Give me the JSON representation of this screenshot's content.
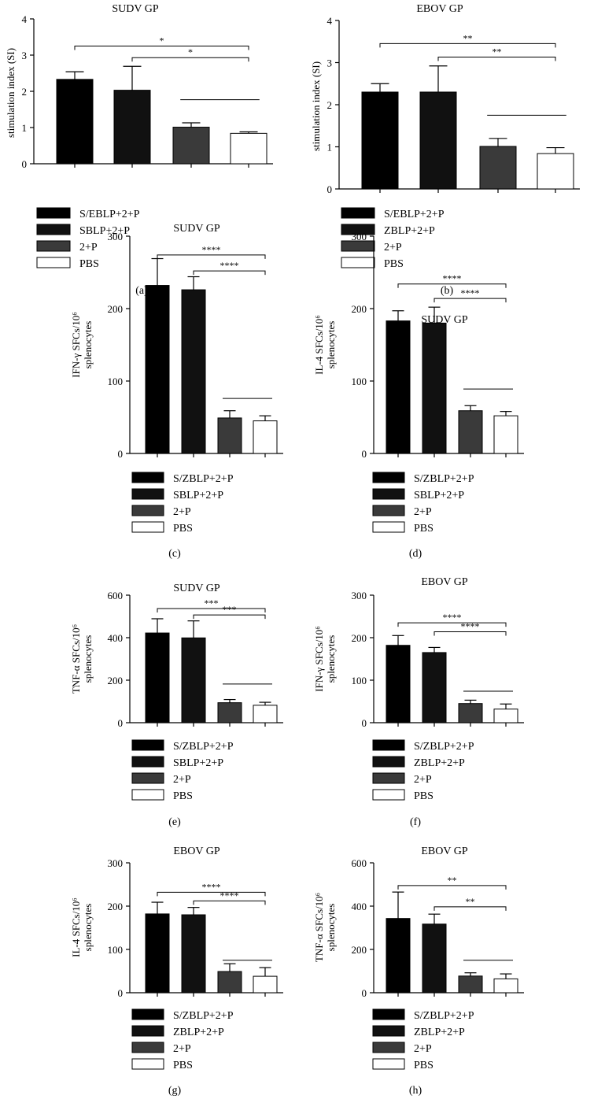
{
  "panels": [
    {
      "label": "(a)",
      "chart_data": {
        "type": "bar",
        "title": "SUDV GP",
        "ylabel_lines": [
          "stimulation index (SI)"
        ],
        "ylim": [
          0,
          4
        ],
        "yticks": [
          0,
          1,
          2,
          3,
          4
        ],
        "categories": [
          "S/EBLP+2+P",
          "SBLP+2+P",
          "2+P",
          "PBS"
        ],
        "values": [
          2.33,
          2.03,
          1.01,
          0.84
        ],
        "errors": [
          0.21,
          0.66,
          0.12,
          0.04
        ],
        "significance": [
          {
            "from": 0,
            "to": 3,
            "label": "*",
            "y": 3.25
          },
          {
            "from": 1,
            "to": 3,
            "label": "*",
            "y": 2.93
          },
          {
            "from": 2,
            "to": 3,
            "label": "",
            "y": 1.77
          }
        ],
        "legend": [
          "S/EBLP+2+P",
          "SBLP+2+P",
          "2+P",
          "PBS"
        ]
      }
    },
    {
      "label": "(b)",
      "chart_data": {
        "type": "bar",
        "title": "EBOV GP",
        "ylabel_lines": [
          "stimulation index (SI)"
        ],
        "ylim": [
          0,
          4
        ],
        "yticks": [
          0,
          1,
          2,
          3,
          4
        ],
        "categories": [
          "S/EBLP+2+P",
          "ZBLP+2+P",
          "2+P",
          "PBS"
        ],
        "values": [
          2.3,
          2.3,
          1.01,
          0.84
        ],
        "errors": [
          0.2,
          0.62,
          0.19,
          0.14
        ],
        "significance": [
          {
            "from": 0,
            "to": 3,
            "label": "**",
            "y": 3.45
          },
          {
            "from": 1,
            "to": 3,
            "label": "**",
            "y": 3.13
          },
          {
            "from": 2,
            "to": 3,
            "label": "",
            "y": 1.75
          }
        ],
        "legend": [
          "S/EBLP+2+P",
          "ZBLP+2+P",
          "2+P",
          "PBS"
        ]
      }
    },
    {
      "label": "(c)",
      "chart_data": {
        "type": "bar",
        "title": "SUDV GP",
        "ylabel_lines": [
          "IFN-γ SFCs/10⁶",
          "splenocytes"
        ],
        "ylim": [
          0,
          300
        ],
        "yticks": [
          0,
          100,
          200,
          300
        ],
        "categories": [
          "S/ZBLP+2+P",
          "SBLP+2+P",
          "2+P",
          "PBS"
        ],
        "values": [
          232,
          226,
          49,
          45
        ],
        "errors": [
          37,
          18,
          10,
          7
        ],
        "significance": [
          {
            "from": 0,
            "to": 3,
            "label": "****",
            "y": 274
          },
          {
            "from": 1,
            "to": 3,
            "label": "****",
            "y": 252
          },
          {
            "from": 2,
            "to": 3,
            "label": "",
            "y": 76
          }
        ],
        "legend": [
          "S/ZBLP+2+P",
          "SBLP+2+P",
          "2+P",
          "PBS"
        ]
      }
    },
    {
      "label": "(d)",
      "chart_data": {
        "type": "bar",
        "title": "SUDV GP",
        "ylabel_lines": [
          "IL-4 SFCs/10⁶",
          "splenocytes"
        ],
        "ylim": [
          0,
          300
        ],
        "yticks": [
          0,
          100,
          200,
          300
        ],
        "categories": [
          "S/ZBLP+2+P",
          "SBLP+2+P",
          "2+P",
          "PBS"
        ],
        "values": [
          183,
          180,
          59,
          52
        ],
        "errors": [
          14,
          22,
          7,
          6
        ],
        "significance": [
          {
            "from": 0,
            "to": 3,
            "label": "****",
            "y": 234
          },
          {
            "from": 1,
            "to": 3,
            "label": "****",
            "y": 214
          },
          {
            "from": 2,
            "to": 3,
            "label": "",
            "y": 89
          }
        ],
        "legend": [
          "S/ZBLP+2+P",
          "SBLP+2+P",
          "2+P",
          "PBS"
        ]
      }
    },
    {
      "label": "(e)",
      "chart_data": {
        "type": "bar",
        "title": "SUDV GP",
        "ylabel_lines": [
          "TNF-α SFCs/10⁶",
          "splenocytes"
        ],
        "ylim": [
          0,
          600
        ],
        "yticks": [
          0,
          200,
          400,
          600
        ],
        "categories": [
          "S/ZBLP+2+P",
          "SBLP+2+P",
          "2+P",
          "PBS"
        ],
        "values": [
          422,
          399,
          94,
          82
        ],
        "errors": [
          67,
          80,
          15,
          14
        ],
        "significance": [
          {
            "from": 0,
            "to": 3,
            "label": "***",
            "y": 537
          },
          {
            "from": 1,
            "to": 3,
            "label": "***",
            "y": 507
          },
          {
            "from": 2,
            "to": 3,
            "label": "",
            "y": 182
          }
        ],
        "legend": [
          "S/ZBLP+2+P",
          "SBLP+2+P",
          "2+P",
          "PBS"
        ]
      }
    },
    {
      "label": "(f)",
      "chart_data": {
        "type": "bar",
        "title": "EBOV GP",
        "ylabel_lines": [
          "IFN-γ SFCs/10⁶",
          "splenocytes"
        ],
        "ylim": [
          0,
          300
        ],
        "yticks": [
          0,
          100,
          200,
          300
        ],
        "categories": [
          "S/ZBLP+2+P",
          "ZBLP+2+P",
          "2+P",
          "PBS"
        ],
        "values": [
          182,
          165,
          45,
          32
        ],
        "errors": [
          23,
          12,
          8,
          12
        ],
        "significance": [
          {
            "from": 0,
            "to": 3,
            "label": "****",
            "y": 235
          },
          {
            "from": 1,
            "to": 3,
            "label": "****",
            "y": 214
          },
          {
            "from": 2,
            "to": 3,
            "label": "",
            "y": 74
          }
        ],
        "legend": [
          "S/ZBLP+2+P",
          "ZBLP+2+P",
          "2+P",
          "PBS"
        ]
      }
    },
    {
      "label": "(g)",
      "chart_data": {
        "type": "bar",
        "title": "EBOV GP",
        "ylabel_lines": [
          "IL-4 SFCs/10⁶",
          "splenocytes"
        ],
        "ylim": [
          0,
          300
        ],
        "yticks": [
          0,
          100,
          200,
          300
        ],
        "categories": [
          "S/ZBLP+2+P",
          "ZBLP+2+P",
          "2+P",
          "PBS"
        ],
        "values": [
          182,
          180,
          49,
          38
        ],
        "errors": [
          27,
          17,
          18,
          20
        ],
        "significance": [
          {
            "from": 0,
            "to": 3,
            "label": "****",
            "y": 232
          },
          {
            "from": 1,
            "to": 3,
            "label": "****",
            "y": 212
          },
          {
            "from": 2,
            "to": 3,
            "label": "",
            "y": 75
          }
        ],
        "legend": [
          "S/ZBLP+2+P",
          "ZBLP+2+P",
          "2+P",
          "PBS"
        ]
      }
    },
    {
      "label": "(h)",
      "chart_data": {
        "type": "bar",
        "title": "EBOV GP",
        "ylabel_lines": [
          "TNF-α SFCs/10⁶",
          "splenocytes"
        ],
        "ylim": [
          0,
          600
        ],
        "yticks": [
          0,
          200,
          400,
          600
        ],
        "categories": [
          "S/ZBLP+2+P",
          "ZBLP+2+P",
          "2+P",
          "PBS"
        ],
        "values": [
          343,
          317,
          77,
          64
        ],
        "errors": [
          122,
          46,
          15,
          23
        ],
        "significance": [
          {
            "from": 0,
            "to": 3,
            "label": "**",
            "y": 495
          },
          {
            "from": 1,
            "to": 3,
            "label": "**",
            "y": 397
          },
          {
            "from": 2,
            "to": 3,
            "label": "",
            "y": 150
          }
        ],
        "legend": [
          "S/ZBLP+2+P",
          "ZBLP+2+P",
          "2+P",
          "PBS"
        ]
      }
    }
  ],
  "bar_colors": [
    "#000000",
    "#111111",
    "#3a3a3a",
    "#ffffff"
  ],
  "axis_color": "#000000"
}
